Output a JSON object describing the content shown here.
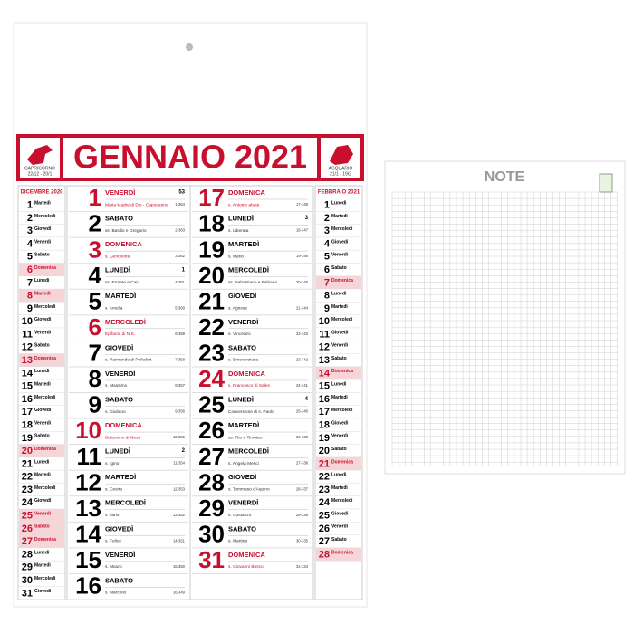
{
  "header": {
    "title": "GENNAIO 2021",
    "left_sign": {
      "name": "CAPRICORNO",
      "dates": "22/12 - 20/1"
    },
    "right_sign": {
      "name": "ACQUARIO",
      "dates": "21/1 - 19/2"
    }
  },
  "days": [
    {
      "day": 1,
      "weekday": "VENERDÌ",
      "saint": "Maria Madre di Dio - Capodanno",
      "count": "1-364",
      "week": "53",
      "holiday": true
    },
    {
      "day": 2,
      "weekday": "SABATO",
      "saint": "ss. Basilio e Gregorio",
      "count": "2-363"
    },
    {
      "day": 3,
      "weekday": "DOMENICA",
      "saint": "s. Genoveffa",
      "count": "3-362",
      "holiday": true
    },
    {
      "day": 4,
      "weekday": "LUNEDÌ",
      "saint": "ss. Ermete e Caio",
      "count": "4-361",
      "week": "1"
    },
    {
      "day": 5,
      "weekday": "MARTEDÌ",
      "saint": "s. Amelia",
      "count": "5-360"
    },
    {
      "day": 6,
      "weekday": "MERCOLEDÌ",
      "saint": "Epifania di N.S.",
      "count": "6-359",
      "holiday": true
    },
    {
      "day": 7,
      "weekday": "GIOVEDÌ",
      "saint": "s. Raimondo di Peñafort",
      "count": "7-358"
    },
    {
      "day": 8,
      "weekday": "VENERDÌ",
      "saint": "s. Massimo",
      "count": "8-357"
    },
    {
      "day": 9,
      "weekday": "SABATO",
      "saint": "s. Giuliano",
      "count": "9-356"
    },
    {
      "day": 10,
      "weekday": "DOMENICA",
      "saint": "Battesimo di Gesù",
      "count": "10-355",
      "holiday": true
    },
    {
      "day": 11,
      "weekday": "LUNEDÌ",
      "saint": "s. Igino",
      "count": "11-354",
      "week": "2"
    },
    {
      "day": 12,
      "weekday": "MARTEDÌ",
      "saint": "s. Cesira",
      "count": "12-353"
    },
    {
      "day": 13,
      "weekday": "MERCOLEDÌ",
      "saint": "s. Ilario",
      "count": "13-352"
    },
    {
      "day": 14,
      "weekday": "GIOVEDÌ",
      "saint": "s. Felice",
      "count": "14-351"
    },
    {
      "day": 15,
      "weekday": "VENERDÌ",
      "saint": "s. Mauro",
      "count": "15-350"
    },
    {
      "day": 16,
      "weekday": "SABATO",
      "saint": "s. Marcello",
      "count": "16-349"
    },
    {
      "day": 17,
      "weekday": "DOMENICA",
      "saint": "s. Antonio abate",
      "count": "17-348",
      "holiday": true
    },
    {
      "day": 18,
      "weekday": "LUNEDÌ",
      "saint": "s. Liberata",
      "count": "18-347",
      "week": "3"
    },
    {
      "day": 19,
      "weekday": "MARTEDÌ",
      "saint": "s. Mario",
      "count": "19-346"
    },
    {
      "day": 20,
      "weekday": "MERCOLEDÌ",
      "saint": "ss. Sebastiano e Fabiano",
      "count": "20-345"
    },
    {
      "day": 21,
      "weekday": "GIOVEDÌ",
      "saint": "s. Agnese",
      "count": "21-344"
    },
    {
      "day": 22,
      "weekday": "VENERDÌ",
      "saint": "s. Vincenzo",
      "count": "22-343"
    },
    {
      "day": 23,
      "weekday": "SABATO",
      "saint": "s. Emerenziana",
      "count": "23-342"
    },
    {
      "day": 24,
      "weekday": "DOMENICA",
      "saint": "s. Francesco di Sales",
      "count": "24-341",
      "holiday": true
    },
    {
      "day": 25,
      "weekday": "LUNEDÌ",
      "saint": "Conversione di s. Paolo",
      "count": "25-340",
      "week": "4"
    },
    {
      "day": 26,
      "weekday": "MARTEDÌ",
      "saint": "ss. Tito e Timoteo",
      "count": "26-339"
    },
    {
      "day": 27,
      "weekday": "MERCOLEDÌ",
      "saint": "s. Angela Merici",
      "count": "27-338"
    },
    {
      "day": 28,
      "weekday": "GIOVEDÌ",
      "saint": "s. Tommaso d'Aquino",
      "count": "28-337"
    },
    {
      "day": 29,
      "weekday": "VENERDÌ",
      "saint": "s. Costanzo",
      "count": "29-336"
    },
    {
      "day": 30,
      "weekday": "SABATO",
      "saint": "s. Martina",
      "count": "30-335"
    },
    {
      "day": 31,
      "weekday": "DOMENICA",
      "saint": "s. Giovanni Bosco",
      "count": "31-334",
      "holiday": true
    }
  ],
  "december": {
    "title": "DICEMBRE 2020",
    "days": [
      {
        "day": 1,
        "weekday": "Martedì"
      },
      {
        "day": 2,
        "weekday": "Mercoledì"
      },
      {
        "day": 3,
        "weekday": "Giovedì"
      },
      {
        "day": 4,
        "weekday": "Venerdì"
      },
      {
        "day": 5,
        "weekday": "Sabato"
      },
      {
        "day": 6,
        "weekday": "Domenica",
        "holiday": true
      },
      {
        "day": 7,
        "weekday": "Lunedì"
      },
      {
        "day": 8,
        "weekday": "Martedì",
        "holiday": true
      },
      {
        "day": 9,
        "weekday": "Mercoledì"
      },
      {
        "day": 10,
        "weekday": "Giovedì"
      },
      {
        "day": 11,
        "weekday": "Venerdì"
      },
      {
        "day": 12,
        "weekday": "Sabato"
      },
      {
        "day": 13,
        "weekday": "Domenica",
        "holiday": true
      },
      {
        "day": 14,
        "weekday": "Lunedì"
      },
      {
        "day": 15,
        "weekday": "Martedì"
      },
      {
        "day": 16,
        "weekday": "Mercoledì"
      },
      {
        "day": 17,
        "weekday": "Giovedì"
      },
      {
        "day": 18,
        "weekday": "Venerdì"
      },
      {
        "day": 19,
        "weekday": "Sabato"
      },
      {
        "day": 20,
        "weekday": "Domenica",
        "holiday": true
      },
      {
        "day": 21,
        "weekday": "Lunedì"
      },
      {
        "day": 22,
        "weekday": "Martedì"
      },
      {
        "day": 23,
        "weekday": "Mercoledì"
      },
      {
        "day": 24,
        "weekday": "Giovedì"
      },
      {
        "day": 25,
        "weekday": "Venerdì",
        "holiday": true
      },
      {
        "day": 26,
        "weekday": "Sabato",
        "holiday": true
      },
      {
        "day": 27,
        "weekday": "Domenica",
        "holiday": true
      },
      {
        "day": 28,
        "weekday": "Lunedì"
      },
      {
        "day": 29,
        "weekday": "Martedì"
      },
      {
        "day": 30,
        "weekday": "Mercoledì"
      },
      {
        "day": 31,
        "weekday": "Giovedì"
      }
    ]
  },
  "february": {
    "title": "FEBBRAIO 2021",
    "days": [
      {
        "day": 1,
        "weekday": "Lunedì"
      },
      {
        "day": 2,
        "weekday": "Martedì"
      },
      {
        "day": 3,
        "weekday": "Mercoledì"
      },
      {
        "day": 4,
        "weekday": "Giovedì"
      },
      {
        "day": 5,
        "weekday": "Venerdì"
      },
      {
        "day": 6,
        "weekday": "Sabato"
      },
      {
        "day": 7,
        "weekday": "Domenica",
        "holiday": true
      },
      {
        "day": 8,
        "weekday": "Lunedì"
      },
      {
        "day": 9,
        "weekday": "Martedì"
      },
      {
        "day": 10,
        "weekday": "Mercoledì"
      },
      {
        "day": 11,
        "weekday": "Giovedì"
      },
      {
        "day": 12,
        "weekday": "Venerdì"
      },
      {
        "day": 13,
        "weekday": "Sabato"
      },
      {
        "day": 14,
        "weekday": "Domenica",
        "holiday": true
      },
      {
        "day": 15,
        "weekday": "Lunedì"
      },
      {
        "day": 16,
        "weekday": "Martedì"
      },
      {
        "day": 17,
        "weekday": "Mercoledì"
      },
      {
        "day": 18,
        "weekday": "Giovedì"
      },
      {
        "day": 19,
        "weekday": "Venerdì"
      },
      {
        "day": 20,
        "weekday": "Sabato"
      },
      {
        "day": 21,
        "weekday": "Domenica",
        "holiday": true
      },
      {
        "day": 22,
        "weekday": "Lunedì"
      },
      {
        "day": 23,
        "weekday": "Martedì"
      },
      {
        "day": 24,
        "weekday": "Mercoledì"
      },
      {
        "day": 25,
        "weekday": "Giovedì"
      },
      {
        "day": 26,
        "weekday": "Venerdì"
      },
      {
        "day": 27,
        "weekday": "Sabato"
      },
      {
        "day": 28,
        "weekday": "Domenica",
        "holiday": true
      }
    ]
  },
  "note": {
    "title": "NOTE"
  }
}
